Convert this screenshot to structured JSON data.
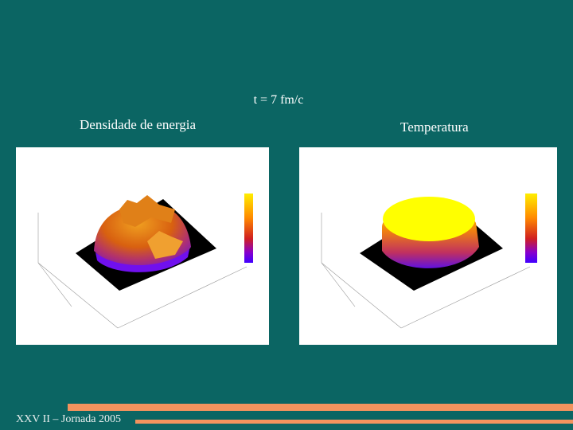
{
  "slide": {
    "title": "t = 7 fm/c",
    "panels": [
      {
        "caption": "Densidade de energia"
      },
      {
        "caption": "Temperatura"
      }
    ],
    "footer": "XXV II – Jornada 2005"
  }
}
